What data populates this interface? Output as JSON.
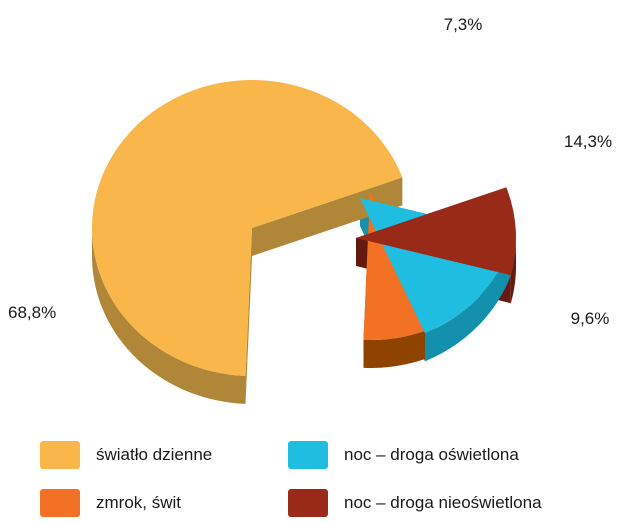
{
  "chart_data": {
    "type": "pie",
    "categories": [
      "światło dzienne",
      "zmrok, świt",
      "noc – droga oświetlona",
      "noc – droga nieoświetlona"
    ],
    "values": [
      68.8,
      7.3,
      14.3,
      9.6
    ],
    "value_labels": [
      "68,8%",
      "7,3%",
      "14,3%",
      "9,6%"
    ],
    "colors": [
      "#F9B74B",
      "#F27124",
      "#1FBDE0",
      "#992A19"
    ],
    "side_colors": [
      "#B08639",
      "#8E4300",
      "#1390AC",
      "#661A0F"
    ],
    "style": "3d-exploded",
    "legend_position": "bottom"
  },
  "legend": {
    "items": [
      {
        "label": "światło dzienne",
        "color": "#F9B74B"
      },
      {
        "label": "zmrok, świt",
        "color": "#F27124"
      },
      {
        "label": "noc – droga oświetlona",
        "color": "#1FBDE0"
      },
      {
        "label": "noc – droga nieoświetlona",
        "color": "#992A19"
      }
    ]
  }
}
